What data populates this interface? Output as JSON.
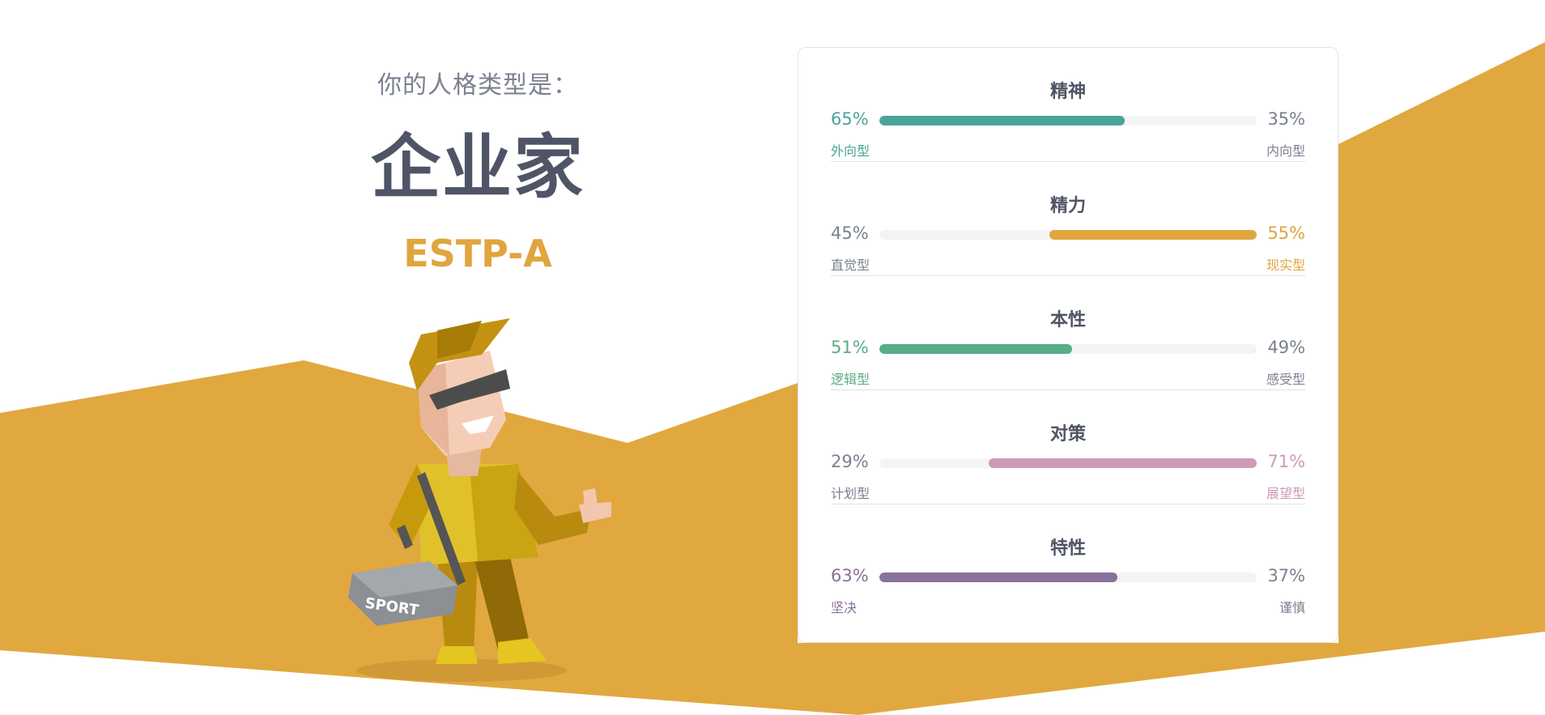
{
  "header": {
    "intro": "你的人格类型是：",
    "type_name": "企业家",
    "type_code": "ESTP-A"
  },
  "character": {
    "bag_text": "SPORT"
  },
  "colors": {
    "background_shape": "#e1a83f",
    "muted_text": "#7b8190",
    "title_text": "#4f5566"
  },
  "traits": [
    {
      "title": "精神",
      "left_pct": "65%",
      "right_pct": "35%",
      "left_label": "外向型",
      "right_label": "内向型",
      "fill": 0.65,
      "side": "left",
      "color": "#4aa39b"
    },
    {
      "title": "精力",
      "left_pct": "45%",
      "right_pct": "55%",
      "left_label": "直觉型",
      "right_label": "现实型",
      "fill": 0.55,
      "side": "right",
      "color": "#e0a53e"
    },
    {
      "title": "本性",
      "left_pct": "51%",
      "right_pct": "49%",
      "left_label": "逻辑型",
      "right_label": "感受型",
      "fill": 0.51,
      "side": "left",
      "color": "#58ad87"
    },
    {
      "title": "对策",
      "left_pct": "29%",
      "right_pct": "71%",
      "left_label": "计划型",
      "right_label": "展望型",
      "fill": 0.71,
      "side": "right",
      "color": "#cd9ab8"
    },
    {
      "title": "特性",
      "left_pct": "63%",
      "right_pct": "37%",
      "left_label": "坚决",
      "right_label": "谨慎",
      "fill": 0.63,
      "side": "left",
      "color": "#88719a"
    }
  ]
}
